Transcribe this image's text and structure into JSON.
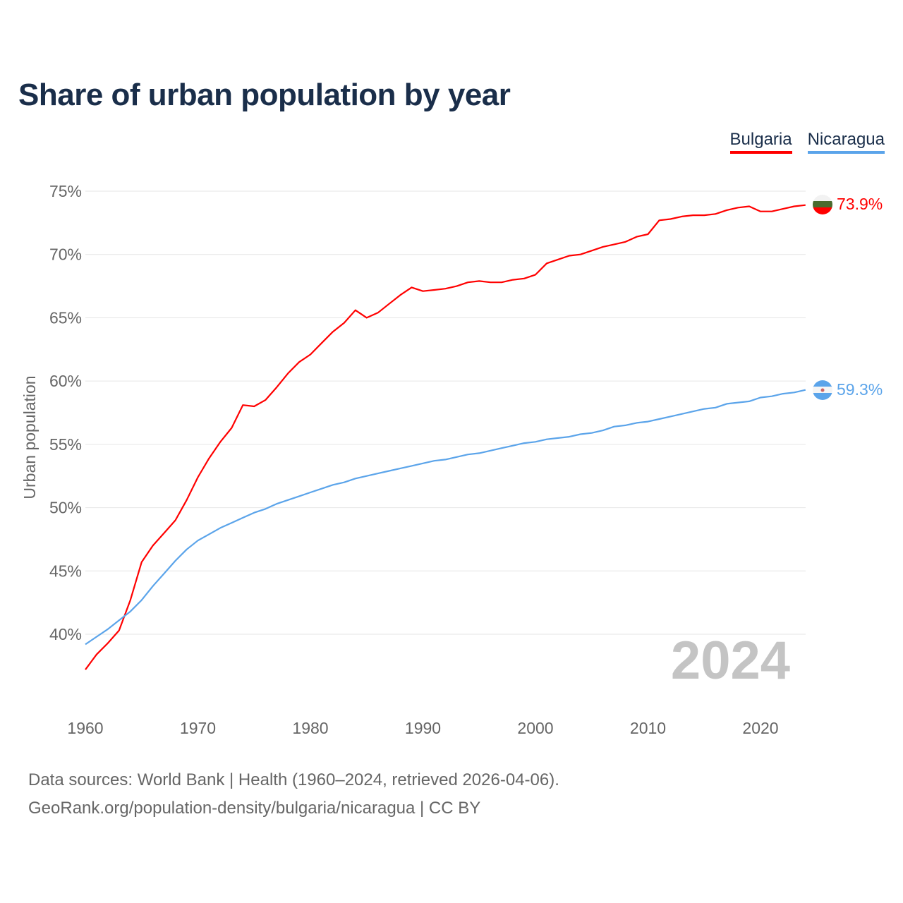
{
  "chart_data": {
    "type": "line",
    "title": "Share of urban population by year",
    "ylabel": "Urban population",
    "xlabel": "",
    "xlim": [
      1960,
      2024
    ],
    "ylim": [
      35,
      76
    ],
    "yticks": [
      40,
      45,
      50,
      55,
      60,
      65,
      70,
      75
    ],
    "ytick_labels": [
      "40%",
      "45%",
      "50%",
      "55%",
      "60%",
      "65%",
      "70%",
      "75%"
    ],
    "xticks": [
      1960,
      1970,
      1980,
      1990,
      2000,
      2010,
      2020
    ],
    "xtick_labels": [
      "1960",
      "1970",
      "1980",
      "1990",
      "2000",
      "2010",
      "2020"
    ],
    "grid": true,
    "legend_position": "top-right",
    "year_watermark": "2024",
    "x": [
      1960,
      1961,
      1962,
      1963,
      1964,
      1965,
      1966,
      1967,
      1968,
      1969,
      1970,
      1971,
      1972,
      1973,
      1974,
      1975,
      1976,
      1977,
      1978,
      1979,
      1980,
      1981,
      1982,
      1983,
      1984,
      1985,
      1986,
      1987,
      1988,
      1989,
      1990,
      1991,
      1992,
      1993,
      1994,
      1995,
      1996,
      1997,
      1998,
      1999,
      2000,
      2001,
      2002,
      2003,
      2004,
      2005,
      2006,
      2007,
      2008,
      2009,
      2010,
      2011,
      2012,
      2013,
      2014,
      2015,
      2016,
      2017,
      2018,
      2019,
      2020,
      2021,
      2022,
      2023,
      2024
    ],
    "series": [
      {
        "name": "Bulgaria",
        "color": "#ff0000",
        "end_label": "73.9%",
        "values": [
          37.2,
          38.4,
          39.3,
          40.3,
          42.7,
          45.7,
          47.0,
          48.0,
          49.0,
          50.6,
          52.4,
          53.9,
          55.2,
          56.3,
          58.1,
          58.0,
          58.5,
          59.5,
          60.6,
          61.5,
          62.1,
          63.0,
          63.9,
          64.6,
          65.6,
          65.0,
          65.4,
          66.1,
          66.8,
          67.4,
          67.1,
          67.2,
          67.3,
          67.5,
          67.8,
          67.9,
          67.8,
          67.8,
          68.0,
          68.1,
          68.4,
          69.3,
          69.6,
          69.9,
          70.0,
          70.3,
          70.6,
          70.8,
          71.0,
          71.4,
          71.6,
          72.7,
          72.8,
          73.0,
          73.1,
          73.1,
          73.2,
          73.5,
          73.7,
          73.8,
          73.4,
          73.4,
          73.6,
          73.8,
          73.9
        ]
      },
      {
        "name": "Nicaragua",
        "color": "#5ba4ea",
        "end_label": "59.3%",
        "values": [
          39.2,
          39.8,
          40.4,
          41.1,
          41.8,
          42.7,
          43.8,
          44.8,
          45.8,
          46.7,
          47.4,
          47.9,
          48.4,
          48.8,
          49.2,
          49.6,
          49.9,
          50.3,
          50.6,
          50.9,
          51.2,
          51.5,
          51.8,
          52.0,
          52.3,
          52.5,
          52.7,
          52.9,
          53.1,
          53.3,
          53.5,
          53.7,
          53.8,
          54.0,
          54.2,
          54.3,
          54.5,
          54.7,
          54.9,
          55.1,
          55.2,
          55.4,
          55.5,
          55.6,
          55.8,
          55.9,
          56.1,
          56.4,
          56.5,
          56.7,
          56.8,
          57.0,
          57.2,
          57.4,
          57.6,
          57.8,
          57.9,
          58.2,
          58.3,
          58.4,
          58.7,
          58.8,
          59.0,
          59.1,
          59.3
        ]
      }
    ]
  },
  "footer": {
    "line1": "Data sources: World Bank | Health (1960–2024, retrieved 2026-04-06).",
    "line2": "GeoRank.org/population-density/bulgaria/nicaragua | CC BY"
  }
}
